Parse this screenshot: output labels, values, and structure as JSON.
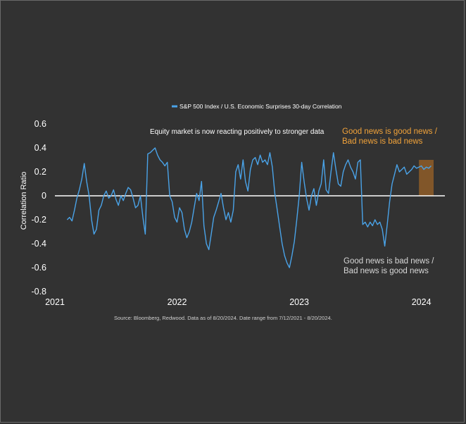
{
  "colors": {
    "background": "#323232",
    "series": "#4aa3e8",
    "highlight_fill": "#8a5a28",
    "highlight_accent": "#f2a33a",
    "zero_line": "#ffffff"
  },
  "legend": {
    "label": "S&P 500 Index / U.S. Economic Surprises 30-day Correlation"
  },
  "annotations": {
    "top_center": "Equity market is now reacting positively to stronger data",
    "good_news_line1": "Good news is good news /",
    "good_news_line2": "Bad news is bad news",
    "bad_news_line1": "Good news is bad news /",
    "bad_news_line2": "Bad news is good news"
  },
  "source": "Source: Bloomberg, Redwood. Data as of 8/20/2024. Date range from 7/12/2021 - 8/20/2024.",
  "chart_data": {
    "type": "line",
    "title": "",
    "xlabel": "",
    "ylabel": "Correlation Ratio",
    "ylim": [
      -0.8,
      0.6
    ],
    "xlim": [
      2021.0,
      2024.1
    ],
    "yticks": [
      "0.6",
      "0.4",
      "0.2",
      "0",
      "-0.2",
      "-0.4",
      "-0.6",
      "-0.8"
    ],
    "xticks": [
      "2021",
      "2022",
      "2023",
      "2024"
    ],
    "grid": false,
    "legend_position": "top-center",
    "highlight_region": {
      "x_start": 2023.98,
      "x_end": 2024.1,
      "y_start": 0.0,
      "y_end": 0.3
    },
    "series": [
      {
        "name": "S&P 500 Index / U.S. Economic Surprises 30-day Correlation",
        "x": [
          2021.1,
          2021.12,
          2021.14,
          2021.16,
          2021.18,
          2021.2,
          2021.22,
          2021.24,
          2021.26,
          2021.28,
          2021.3,
          2021.32,
          2021.34,
          2021.36,
          2021.38,
          2021.4,
          2021.42,
          2021.44,
          2021.46,
          2021.48,
          2021.5,
          2021.52,
          2021.54,
          2021.56,
          2021.58,
          2021.6,
          2021.62,
          2021.64,
          2021.66,
          2021.68,
          2021.7,
          2021.72,
          2021.74,
          2021.76,
          2021.78,
          2021.8,
          2021.82,
          2021.84,
          2021.86,
          2021.88,
          2021.9,
          2021.92,
          2021.94,
          2021.96,
          2021.98,
          2022.0,
          2022.02,
          2022.04,
          2022.06,
          2022.08,
          2022.1,
          2022.12,
          2022.14,
          2022.16,
          2022.18,
          2022.2,
          2022.22,
          2022.24,
          2022.26,
          2022.28,
          2022.3,
          2022.32,
          2022.34,
          2022.36,
          2022.38,
          2022.4,
          2022.42,
          2022.44,
          2022.46,
          2022.48,
          2022.5,
          2022.52,
          2022.54,
          2022.56,
          2022.58,
          2022.6,
          2022.62,
          2022.64,
          2022.66,
          2022.68,
          2022.7,
          2022.72,
          2022.74,
          2022.76,
          2022.78,
          2022.8,
          2022.82,
          2022.84,
          2022.86,
          2022.88,
          2022.9,
          2022.92,
          2022.94,
          2022.96,
          2022.98,
          2023.0,
          2023.02,
          2023.04,
          2023.06,
          2023.08,
          2023.1,
          2023.12,
          2023.14,
          2023.16,
          2023.18,
          2023.2,
          2023.22,
          2023.24,
          2023.26,
          2023.28,
          2023.3,
          2023.32,
          2023.34,
          2023.36,
          2023.38,
          2023.4,
          2023.42,
          2023.44,
          2023.46,
          2023.48,
          2023.5,
          2023.52,
          2023.54,
          2023.56,
          2023.58,
          2023.6,
          2023.62,
          2023.64,
          2023.66,
          2023.68,
          2023.7,
          2023.72,
          2023.74,
          2023.76,
          2023.78,
          2023.8,
          2023.82,
          2023.84,
          2023.86,
          2023.88,
          2023.9,
          2023.92,
          2023.94,
          2023.96,
          2023.98,
          2024.0,
          2024.02,
          2024.04,
          2024.06,
          2024.08
        ],
        "values": [
          -0.2,
          -0.18,
          -0.21,
          -0.12,
          -0.02,
          0.05,
          0.14,
          0.27,
          0.12,
          0.0,
          -0.2,
          -0.32,
          -0.28,
          -0.12,
          -0.08,
          0.0,
          0.04,
          -0.02,
          0.0,
          0.05,
          -0.03,
          -0.08,
          0.0,
          -0.04,
          0.02,
          0.07,
          0.05,
          -0.02,
          -0.1,
          -0.08,
          0.0,
          -0.18,
          -0.32,
          0.35,
          0.36,
          0.38,
          0.4,
          0.34,
          0.3,
          0.28,
          0.25,
          0.28,
          0.0,
          -0.05,
          -0.18,
          -0.22,
          -0.1,
          -0.14,
          -0.28,
          -0.35,
          -0.3,
          -0.22,
          -0.1,
          0.02,
          -0.04,
          0.12,
          -0.25,
          -0.4,
          -0.45,
          -0.32,
          -0.18,
          -0.12,
          -0.05,
          0.02,
          -0.1,
          -0.2,
          -0.14,
          -0.22,
          -0.12,
          0.2,
          0.26,
          0.14,
          0.3,
          0.12,
          0.04,
          0.22,
          0.3,
          0.32,
          0.26,
          0.34,
          0.28,
          0.3,
          0.26,
          0.36,
          0.24,
          0.02,
          -0.12,
          -0.26,
          -0.4,
          -0.5,
          -0.56,
          -0.6,
          -0.5,
          -0.38,
          -0.2,
          0.0,
          0.28,
          0.12,
          -0.02,
          -0.12,
          0.0,
          0.06,
          -0.08,
          0.04,
          0.1,
          0.3,
          0.05,
          0.02,
          0.2,
          0.36,
          0.22,
          0.1,
          0.08,
          0.2,
          0.26,
          0.3,
          0.24,
          0.2,
          0.14,
          0.28,
          0.3,
          -0.24,
          -0.22,
          -0.26,
          -0.22,
          -0.25,
          -0.2,
          -0.24,
          -0.22,
          -0.28,
          -0.42,
          -0.24,
          -0.05,
          0.1,
          0.18,
          0.26,
          0.2,
          0.22,
          0.24,
          0.18,
          0.2,
          0.22,
          0.25,
          0.23,
          0.24,
          0.25,
          0.22,
          0.24,
          0.23,
          0.25
        ]
      }
    ]
  }
}
